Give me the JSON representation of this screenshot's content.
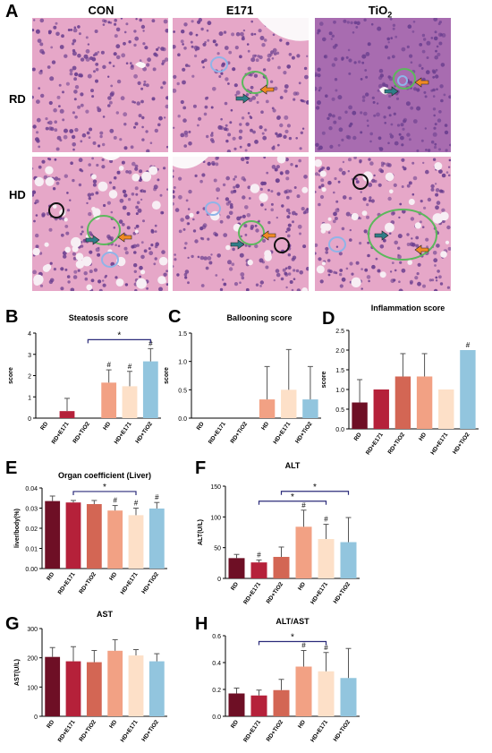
{
  "figure": {
    "letters": {
      "A": "A",
      "B": "B",
      "C": "C",
      "D": "D",
      "E": "E",
      "F": "F",
      "G": "G",
      "H": "H"
    },
    "micrograph": {
      "columns": [
        "CON",
        "E171",
        "TiO",
        "2"
      ],
      "rows": [
        "RD",
        "HD"
      ],
      "colors": {
        "stain_pink": "#e6a7c8",
        "stain_purple": "#a86cb0",
        "nuclei": "#6b3f8f",
        "circle_green": "#5cb85c",
        "circle_blue": "#8fb4e8",
        "circle_black": "#111111",
        "arrow_teal": "#2f7d88",
        "arrow_orange": "#f08a24"
      }
    }
  },
  "colors": {
    "bars": [
      "#6e0f25",
      "#b5213a",
      "#d36654",
      "#f2a184",
      "#fde0c8",
      "#92c5de"
    ],
    "annotation": "#2b2b7a"
  },
  "chart_data": [
    {
      "id": "B",
      "type": "bar",
      "title": "Steatosis score",
      "xlabel": "",
      "ylabel": "score",
      "ylim": [
        0,
        4
      ],
      "yticks": [
        0,
        1,
        2,
        3,
        4
      ],
      "categories": [
        "RD",
        "RD+E171",
        "RD+TiO2",
        "HD",
        "HD+E171",
        "HD+TiO2"
      ],
      "values": [
        0,
        0.33,
        0,
        1.67,
        1.5,
        2.67
      ],
      "errors": [
        0,
        0.6,
        0,
        0.6,
        0.7,
        0.6
      ],
      "marks": [
        "",
        "",
        "",
        "#",
        "#",
        "#"
      ],
      "bracket": {
        "from": 2,
        "to": 5,
        "label": "*"
      }
    },
    {
      "id": "C",
      "type": "bar",
      "title": "Ballooning score",
      "xlabel": "",
      "ylabel": "score",
      "ylim": [
        0,
        1.5
      ],
      "yticks": [
        0.0,
        0.5,
        1.0,
        1.5
      ],
      "categories": [
        "RD",
        "RD+E171",
        "RD+TiO2",
        "HD",
        "HD+E171",
        "HD+TiO2"
      ],
      "values": [
        0,
        0,
        0,
        0.33,
        0.5,
        0.33
      ],
      "errors": [
        0,
        0,
        0,
        0.58,
        0.71,
        0.58
      ],
      "marks": [
        "",
        "",
        "",
        "",
        "",
        ""
      ]
    },
    {
      "id": "D",
      "type": "bar",
      "title": "Inflammation score",
      "xlabel": "",
      "ylabel": "score",
      "ylim": [
        0,
        2.5
      ],
      "yticks": [
        0.0,
        0.5,
        1.0,
        1.5,
        2.0,
        2.5
      ],
      "categories": [
        "RD",
        "RD+E171",
        "RD+TiO2",
        "HD",
        "HD+E171",
        "HD+TiO2"
      ],
      "values": [
        0.67,
        1.0,
        1.33,
        1.33,
        1.0,
        2.0
      ],
      "errors": [
        0.58,
        0,
        0.58,
        0.58,
        0,
        0
      ],
      "marks": [
        "",
        "",
        "",
        "",
        "",
        "#"
      ]
    },
    {
      "id": "E",
      "type": "bar",
      "title": "Organ coefficient (Liver)",
      "xlabel": "",
      "ylabel": "liver/body(%)",
      "ylim": [
        0,
        0.04
      ],
      "yticks": [
        0.0,
        0.01,
        0.02,
        0.03,
        0.04
      ],
      "categories": [
        "RD",
        "RD+E171",
        "RD+TiO2",
        "HD",
        "HD+E171",
        "HD+TiO2"
      ],
      "values": [
        0.0335,
        0.0328,
        0.032,
        0.0288,
        0.0265,
        0.0298
      ],
      "errors": [
        0.0025,
        0.001,
        0.0018,
        0.0025,
        0.0035,
        0.003
      ],
      "marks": [
        "",
        "",
        "",
        "#",
        "#",
        "#"
      ],
      "bracket": {
        "from": 1,
        "to": 4,
        "label": "*"
      }
    },
    {
      "id": "F",
      "type": "bar",
      "title": "ALT",
      "xlabel": "",
      "ylabel": "ALT(U/L)",
      "ylim": [
        0,
        150
      ],
      "yticks": [
        0,
        50,
        100,
        150
      ],
      "categories": [
        "RD",
        "RD+E171",
        "RD+TiO2",
        "HD",
        "HD+E171",
        "HD+TiO2"
      ],
      "values": [
        33,
        26,
        35,
        84,
        64,
        59
      ],
      "errors": [
        6,
        4,
        16,
        27,
        24,
        40
      ],
      "marks": [
        "",
        "#",
        "",
        "#",
        "#",
        ""
      ],
      "brackets": [
        {
          "from": 1,
          "to": 4,
          "label": "*"
        },
        {
          "from": 2,
          "to": 5,
          "label": "*"
        }
      ]
    },
    {
      "id": "G",
      "type": "bar",
      "title": "AST",
      "xlabel": "",
      "ylabel": "AST(U/L)",
      "ylim": [
        0,
        300
      ],
      "yticks": [
        0,
        100,
        200,
        300
      ],
      "categories": [
        "RD",
        "RD+E171",
        "RD+TiO2",
        "HD",
        "HD+E171",
        "HD+TiO2"
      ],
      "values": [
        203,
        188,
        185,
        224,
        208,
        188
      ],
      "errors": [
        32,
        50,
        40,
        38,
        20,
        26
      ],
      "marks": [
        "",
        "",
        "",
        "",
        "",
        ""
      ]
    },
    {
      "id": "H",
      "type": "bar",
      "title": "ALT/AST",
      "xlabel": "",
      "ylabel": "",
      "ylim": [
        0,
        0.6
      ],
      "yticks": [
        0.0,
        0.2,
        0.4,
        0.6
      ],
      "categories": [
        "RD",
        "RD+E171",
        "RD+TiO2",
        "HD",
        "HD+E171",
        "HD+TiO2"
      ],
      "values": [
        0.17,
        0.155,
        0.195,
        0.37,
        0.335,
        0.285
      ],
      "errors": [
        0.04,
        0.04,
        0.08,
        0.12,
        0.14,
        0.22
      ],
      "marks": [
        "",
        "",
        "",
        "#",
        "#",
        ""
      ],
      "bracket": {
        "from": 1,
        "to": 4,
        "label": "*"
      }
    }
  ]
}
